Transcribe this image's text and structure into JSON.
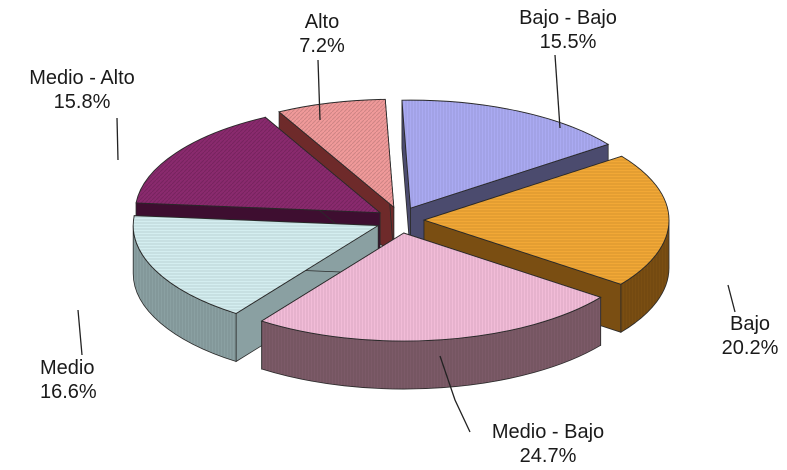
{
  "chart_data": {
    "type": "pie",
    "title": "",
    "exploded": true,
    "three_d": true,
    "slices": [
      {
        "name": "Bajo - Bajo",
        "value": 15.5,
        "value_label": "15.5%",
        "color": "#aaaaf2",
        "side_color": "#4b4b6e"
      },
      {
        "name": "Bajo",
        "value": 20.2,
        "value_label": "20.2%",
        "color": "#f2a836",
        "side_color": "#7a4e12"
      },
      {
        "name": "Medio - Bajo",
        "value": 24.7,
        "value_label": "24.7%",
        "color": "#f2bcd8",
        "side_color": "#7c5a68"
      },
      {
        "name": "Medio",
        "value": 16.6,
        "value_label": "16.6%",
        "color": "#d4eef0",
        "side_color": "#8aa0a2"
      },
      {
        "name": "Medio - Alto",
        "value": 15.8,
        "value_label": "15.8%",
        "color": "#8a2a6e",
        "side_color": "#3e0e30"
      },
      {
        "name": "Alto",
        "value": 7.2,
        "value_label": "7.2%",
        "color": "#f09a9a",
        "side_color": "#6e2a2a"
      }
    ]
  }
}
